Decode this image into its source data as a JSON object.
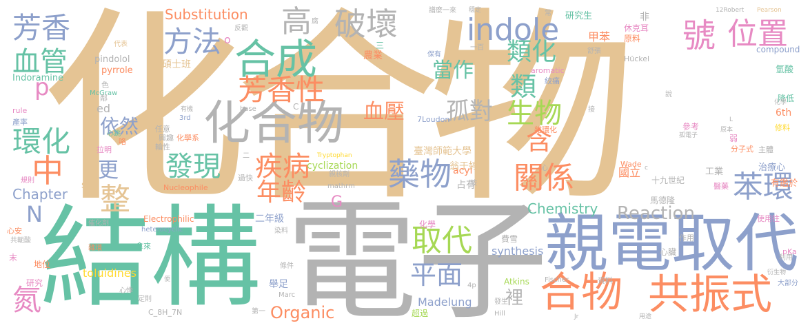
{
  "palette": {
    "tan": "#e5c494",
    "gray": "#b3b3b3",
    "teal": "#66c2a5",
    "orange": "#fc8d62",
    "blue": "#8da0cb",
    "pink": "#e78ac3",
    "green": "#a6d854",
    "yellow": "#ffd92f"
  },
  "words": [
    {
      "id": "huahewu-big",
      "text": "化合物"
    },
    {
      "id": "jiegou",
      "text": "結構"
    },
    {
      "id": "dianzi",
      "text": "電子"
    },
    {
      "id": "qindian-qudai",
      "text": "親電取代"
    },
    {
      "id": "huahewu-mid",
      "text": "化合物"
    },
    {
      "id": "hewu",
      "text": "合物"
    },
    {
      "id": "gongzhenshi",
      "text": "共振式"
    },
    {
      "id": "hecheng",
      "text": "合成"
    },
    {
      "id": "indole",
      "text": "indole"
    },
    {
      "id": "hao",
      "text": "號"
    },
    {
      "id": "weizhi",
      "text": "位置"
    },
    {
      "id": "fangxiang",
      "text": "芳香"
    },
    {
      "id": "xueguan",
      "text": "血管"
    },
    {
      "id": "fangfa",
      "text": "方法"
    },
    {
      "id": "fangxiangxing",
      "text": "芳香性"
    },
    {
      "id": "pohuai",
      "text": "破壞"
    },
    {
      "id": "gao",
      "text": "高"
    },
    {
      "id": "substitution",
      "text": "Substitution"
    },
    {
      "id": "leihua",
      "text": "類化"
    },
    {
      "id": "lei",
      "text": "類"
    },
    {
      "id": "dangzuo",
      "text": "當作"
    },
    {
      "id": "huanhua",
      "text": "環化"
    },
    {
      "id": "zhong",
      "text": "中"
    },
    {
      "id": "yiran",
      "text": "依然"
    },
    {
      "id": "xueya",
      "text": "血壓"
    },
    {
      "id": "gudui",
      "text": "孤對"
    },
    {
      "id": "shengwu",
      "text": "生物"
    },
    {
      "id": "han",
      "text": "含"
    },
    {
      "id": "faxian",
      "text": "發現"
    },
    {
      "id": "jibing",
      "text": "疾病"
    },
    {
      "id": "yaowu",
      "text": "藥物"
    },
    {
      "id": "guanxi",
      "text": "關係"
    },
    {
      "id": "benhuan",
      "text": "苯環"
    },
    {
      "id": "nianling",
      "text": "年齡"
    },
    {
      "id": "zheng",
      "text": "整"
    },
    {
      "id": "geng",
      "text": "更"
    },
    {
      "id": "reaction",
      "text": "Reaction"
    },
    {
      "id": "chemistry",
      "text": "Chemistry"
    },
    {
      "id": "qudai",
      "text": "取代"
    },
    {
      "id": "pingmian",
      "text": "平面"
    },
    {
      "id": "chapter",
      "text": "Chapter"
    },
    {
      "id": "N",
      "text": "N"
    },
    {
      "id": "G",
      "text": "G"
    },
    {
      "id": "p",
      "text": "p"
    },
    {
      "id": "dan",
      "text": "氮"
    },
    {
      "id": "organic",
      "text": "Organic"
    },
    {
      "id": "li",
      "text": "裡"
    },
    {
      "id": "madelung",
      "text": "Madelung"
    },
    {
      "id": "toluidines",
      "text": "toluidines"
    },
    {
      "id": "synthesis",
      "text": "synthesis"
    },
    {
      "id": "cyclization",
      "text": "cyclization"
    },
    {
      "id": "taiwan-normal",
      "text": "臺灣師範大學"
    },
    {
      "id": "yanjiusheng",
      "text": "研究生"
    },
    {
      "id": "yijiu",
      "text": "甲苯"
    },
    {
      "id": "shuoshiban",
      "text": "碩士班"
    },
    {
      "id": "ered",
      "text": "ed"
    },
    {
      "id": "pindolol",
      "text": "pindolol"
    },
    {
      "id": "pyrrole",
      "text": "pyrrole"
    },
    {
      "id": "indoramine",
      "text": "Indoramine"
    },
    {
      "id": "mcgraw",
      "text": "McGraw"
    },
    {
      "id": "nongye",
      "text": "農業"
    },
    {
      "id": "baoyou",
      "text": "保有"
    },
    {
      "id": "aromatic",
      "text": "aromatic"
    },
    {
      "id": "jiaotong",
      "text": "絞痛"
    },
    {
      "id": "huckel",
      "text": "Hückel"
    },
    {
      "id": "compound",
      "text": "compound"
    },
    {
      "id": "yuanliao",
      "text": "原料"
    },
    {
      "id": "xiuke",
      "text": "休克耳"
    },
    {
      "id": "pearson",
      "text": "Pearson"
    },
    {
      "id": "robert",
      "text": "12Robert"
    },
    {
      "id": "jiangji",
      "text": "降低"
    },
    {
      "id": "qingsuan",
      "text": "氫酸"
    },
    {
      "id": "xiuliao",
      "text": "修料"
    },
    {
      "id": "fenzizi",
      "text": "分子式"
    },
    {
      "id": "zhuti",
      "text": "主體"
    },
    {
      "id": "zhiliao",
      "text": "治療心"
    },
    {
      "id": "shijiujishi",
      "text": "十九世紀"
    },
    {
      "id": "gongye",
      "text": "工業"
    },
    {
      "id": "youjianyu",
      "text": "有鑑於"
    },
    {
      "id": "yiyao",
      "text": "醫藥"
    },
    {
      "id": "shiyongzhe",
      "text": "使用往"
    },
    {
      "id": "dabufen",
      "text": "大部分"
    },
    {
      "id": "pka",
      "text": "pKa"
    },
    {
      "id": "zuoyong",
      "text": "作用"
    },
    {
      "id": "xinzang",
      "text": "心臟"
    },
    {
      "id": "guoli",
      "text": "國立"
    },
    {
      "id": "acyl",
      "text": "acyl"
    },
    {
      "id": "wengyuting",
      "text": "翁于婷"
    },
    {
      "id": "zhanyou",
      "text": "占有"
    },
    {
      "id": "an",
      "text": "胺"
    },
    {
      "id": "wade",
      "text": "Wade"
    },
    {
      "id": "mathrm",
      "text": "mathrm"
    },
    {
      "id": "qinhuiji",
      "text": "親核劑"
    },
    {
      "id": "guokuai",
      "text": "過快"
    },
    {
      "id": "nucleophile",
      "text": "Nucleophile"
    },
    {
      "id": "tryptophan",
      "text": "Tryptophan"
    },
    {
      "id": "loudon",
      "text": "7Loudon"
    },
    {
      "id": "zalian",
      "text": "雜環化"
    },
    {
      "id": "gudianzi",
      "text": "孤電子"
    },
    {
      "id": "yuanben",
      "text": "原本"
    },
    {
      "id": "canxiao",
      "text": "參考"
    },
    {
      "id": "ruo",
      "text": "弱"
    },
    {
      "id": "ji",
      "text": "極"
    },
    {
      "id": "qingzhong",
      "text": "輕重"
    },
    {
      "id": "sixth",
      "text": "6th"
    },
    {
      "id": "huazhaoqu",
      "text": "化學"
    },
    {
      "id": "jubu",
      "text": "舉足"
    },
    {
      "id": "mayunlong",
      "text": "馬德隆"
    },
    {
      "id": "ernianji",
      "text": "二年級"
    },
    {
      "id": "electrophilic",
      "text": "Electrophilic"
    },
    {
      "id": "heterocyclic",
      "text": "heterocyclic"
    },
    {
      "id": "xinan",
      "text": "心安"
    },
    {
      "id": "cuihuaji",
      "text": "催化劑"
    },
    {
      "id": "gongyusuan",
      "text": "共軛酸"
    },
    {
      "id": "zahuan",
      "text": "雜環"
    },
    {
      "id": "nalai",
      "text": "拿來"
    },
    {
      "id": "ranliao",
      "text": "染料"
    },
    {
      "id": "feixue",
      "text": "費雪"
    },
    {
      "id": "mo",
      "text": "末"
    },
    {
      "id": "diwei",
      "text": "地位"
    },
    {
      "id": "yanjiu",
      "text": "研究"
    },
    {
      "id": "c8h7n",
      "text": "C_8H_7N"
    },
    {
      "id": "chaoguo",
      "text": "超過"
    },
    {
      "id": "atkins",
      "text": "Atkins"
    },
    {
      "id": "fischer",
      "text": "Fischer"
    },
    {
      "id": "ziliao",
      "text": "資料"
    },
    {
      "id": "yansheng",
      "text": "衍生物"
    },
    {
      "id": "fasheng",
      "text": "發生"
    },
    {
      "id": "hill",
      "text": "Hill"
    },
    {
      "id": "jr",
      "text": "Jr"
    },
    {
      "id": "yongtu",
      "text": "用途"
    },
    {
      "id": "diyi",
      "text": "第一"
    },
    {
      "id": "dingze",
      "text": "定則"
    },
    {
      "id": "marc",
      "text": "Marc"
    },
    {
      "id": "xinji",
      "text": "心悸"
    },
    {
      "id": "sudu",
      "text": "速度"
    },
    {
      "id": "rule",
      "text": "rule"
    },
    {
      "id": "chanlv",
      "text": "產率"
    },
    {
      "id": "lami",
      "text": "拉明"
    },
    {
      "id": "guize",
      "text": "規則"
    },
    {
      "id": "renyi",
      "text": "任意"
    },
    {
      "id": "xingqu",
      "text": "興趣"
    },
    {
      "id": "huaxuexi",
      "text": "化學系"
    },
    {
      "id": "lunxing",
      "text": "輪性"
    },
    {
      "id": "daibiao",
      "text": "代表"
    },
    {
      "id": "base",
      "text": "base"
    },
    {
      "id": "third",
      "text": "3rd"
    },
    {
      "id": "youji",
      "text": "有機"
    },
    {
      "id": "lin",
      "text": "鄰"
    },
    {
      "id": "se",
      "text": "色"
    },
    {
      "id": "lao",
      "text": "咯"
    },
    {
      "id": "xinji2",
      "text": "心跳"
    },
    {
      "id": "fankuan",
      "text": "反觀"
    },
    {
      "id": "fu",
      "text": "腐"
    },
    {
      "id": "quemoyilai",
      "text": "譜麼一來"
    },
    {
      "id": "wending",
      "text": "穩定"
    },
    {
      "id": "chang",
      "text": "常"
    },
    {
      "id": "fei",
      "text": "非"
    },
    {
      "id": "shuzhang",
      "text": "舒張"
    },
    {
      "id": "yibai",
      "text": "一百"
    },
    {
      "id": "san",
      "text": "三"
    },
    {
      "id": "er",
      "text": "二"
    },
    {
      "id": "o",
      "text": "o"
    },
    {
      "id": "s",
      "text": "s"
    },
    {
      "id": "L",
      "text": "L"
    },
    {
      "id": "bian",
      "text": "便"
    },
    {
      "id": "jie",
      "text": "接"
    },
    {
      "id": "shuo",
      "text": "說"
    },
    {
      "id": "xin",
      "text": "心"
    },
    {
      "id": "C",
      "text": "C"
    },
    {
      "id": "c2",
      "text": "c"
    },
    {
      "id": "huan",
      "text": "環"
    },
    {
      "id": "liyong",
      "text": "利用"
    },
    {
      "id": "tiaojian",
      "text": "條件"
    },
    {
      "id": "4p",
      "text": "4p"
    },
    {
      "id": "huaxue2",
      "text": "化學"
    }
  ]
}
